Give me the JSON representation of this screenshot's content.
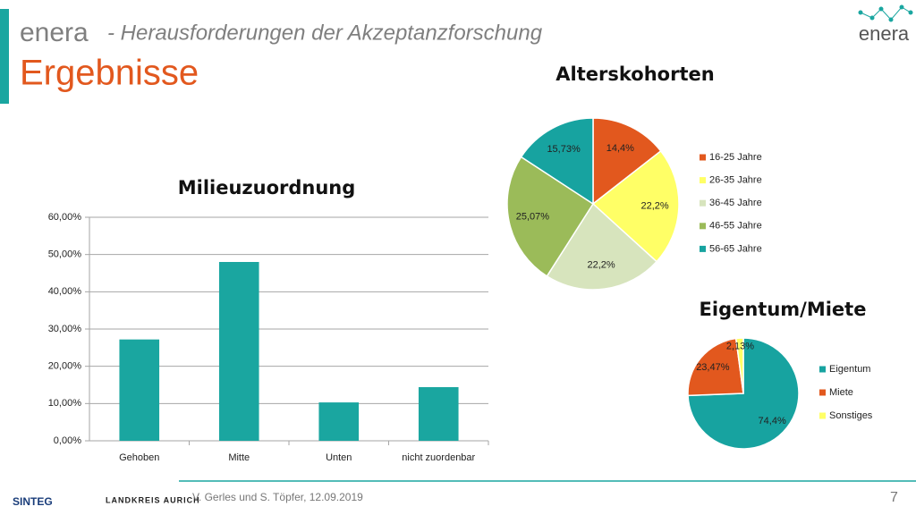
{
  "header": {
    "brand": "enera",
    "subtitle": "- Herausforderungen der Akzeptanzforschung",
    "title": "Ergebnisse",
    "logo": "enera"
  },
  "footer": {
    "author": "V. Gerles und S. Töpfer, 12.09.2019",
    "page": "7",
    "logos": [
      "SINTEG",
      "LANDKREIS AURICH"
    ]
  },
  "chart_data": [
    {
      "type": "bar",
      "title": "Milieuzuordnung",
      "categories": [
        "Gehoben",
        "Mitte",
        "Unten",
        "nicht zuordenbar"
      ],
      "values": [
        27.2,
        48.0,
        10.3,
        14.4
      ],
      "color": "#1aa6a0",
      "ylim": [
        0,
        60
      ],
      "yticks": [
        {
          "value": 0,
          "label": "0,00%"
        },
        {
          "value": 10,
          "label": "10,00%"
        },
        {
          "value": 20,
          "label": "20,00%"
        },
        {
          "value": 30,
          "label": "30,00%"
        },
        {
          "value": 40,
          "label": "40,00%"
        },
        {
          "value": 50,
          "label": "50,00%"
        },
        {
          "value": 60,
          "label": "60,00%"
        }
      ],
      "grid": true
    },
    {
      "type": "pie",
      "title": "Alterskohorten",
      "categories": [
        "16-25 Jahre",
        "26-35 Jahre",
        "36-45 Jahre",
        "46-55 Jahre",
        "56-65 Jahre"
      ],
      "values": [
        14.4,
        22.2,
        22.2,
        25.07,
        15.73
      ],
      "value_labels": [
        "14,4%",
        "22,2%",
        "22,2%",
        "25,07%",
        "15,73%"
      ],
      "colors": [
        "#e2581e",
        "#ffff66",
        "#d7e4bd",
        "#9bbb59",
        "#17a3a0"
      ],
      "legend": "right"
    },
    {
      "type": "pie",
      "title": "Eigentum/Miete",
      "categories": [
        "Eigentum",
        "Miete",
        "Sonstiges"
      ],
      "values": [
        74.4,
        23.47,
        2.13
      ],
      "value_labels": [
        "74,4%",
        "23,47%",
        "2,13%"
      ],
      "colors": [
        "#17a3a0",
        "#e2581e",
        "#ffff66"
      ],
      "legend": "right"
    }
  ]
}
